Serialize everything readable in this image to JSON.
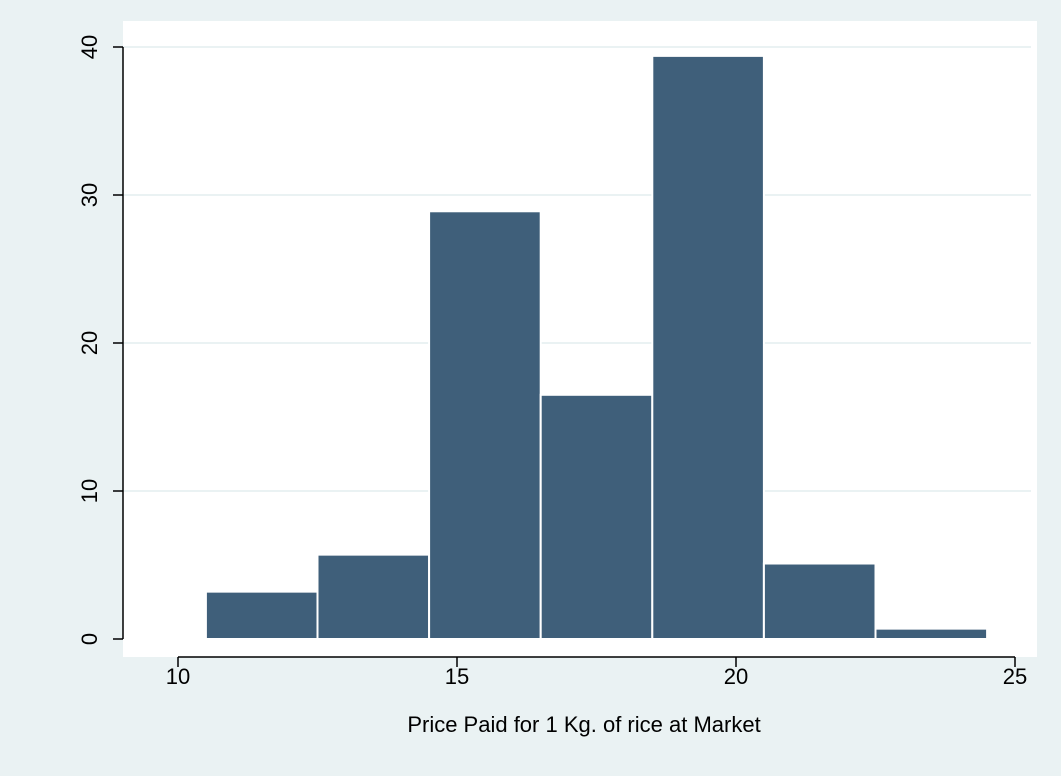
{
  "chart_data": {
    "type": "bar",
    "title": "",
    "xlabel": "Price Paid for 1 Kg. of rice at Market",
    "ylabel": "",
    "xlim": [
      9,
      25.3
    ],
    "ylim": [
      0,
      41.5
    ],
    "xticks": [
      10,
      15,
      20,
      25
    ],
    "yticks": [
      0,
      10,
      20,
      30,
      40
    ],
    "grid": true,
    "legend": "none",
    "bins": [
      {
        "x0": 10.5,
        "x1": 12.5,
        "value": 3.2
      },
      {
        "x0": 12.5,
        "x1": 14.5,
        "value": 5.7
      },
      {
        "x0": 14.5,
        "x1": 16.5,
        "value": 28.9
      },
      {
        "x0": 16.5,
        "x1": 18.5,
        "value": 16.5
      },
      {
        "x0": 18.5,
        "x1": 20.5,
        "value": 39.4
      },
      {
        "x0": 20.5,
        "x1": 22.5,
        "value": 5.1
      },
      {
        "x0": 22.5,
        "x1": 24.5,
        "value": 0.7
      }
    ],
    "colors": {
      "bar": "#3f5f7a",
      "bar_edge": "#ffffff",
      "plot_bg": "#ffffff",
      "outer_bg": "#eaf2f3",
      "grid": "#eaf2f3",
      "axis": "#000000"
    }
  }
}
